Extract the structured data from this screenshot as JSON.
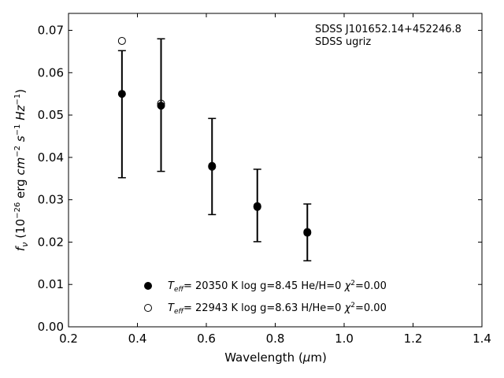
{
  "chart_data": {
    "type": "scatter",
    "xlabel": "Wavelength (μm)",
    "ylabel": "f_ν (10^-26 erg cm^-2 s^-1 Hz^-1)",
    "xlim": [
      0.2,
      1.4
    ],
    "ylim": [
      0.0,
      0.074
    ],
    "x_ticks": [
      0.2,
      0.4,
      0.6,
      0.8,
      1.0,
      1.2,
      1.4
    ],
    "x_tick_labels": [
      "0.2",
      "0.4",
      "0.6",
      "0.8",
      "1.0",
      "1.2",
      "1.4"
    ],
    "y_ticks": [
      0.0,
      0.01,
      0.02,
      0.03,
      0.04,
      0.05,
      0.06,
      0.07
    ],
    "y_tick_labels": [
      "0.00",
      "0.01",
      "0.02",
      "0.03",
      "0.04",
      "0.05",
      "0.06",
      "0.07"
    ],
    "grid": false,
    "annotations": [
      "SDSS J101652.14+452246.8",
      "SDSS ugriz"
    ],
    "observed": {
      "x": [
        0.3551,
        0.4686,
        0.6166,
        0.748,
        0.8932
      ],
      "y": [
        0.055,
        0.0525,
        0.0382,
        0.0285,
        0.0225
      ],
      "err_low": [
        0.0352,
        0.0367,
        0.0265,
        0.0201,
        0.0156
      ],
      "err_high": [
        0.0652,
        0.068,
        0.0492,
        0.0372,
        0.029
      ]
    },
    "series": [
      {
        "marker": "filled-circle",
        "legend": {
          "teff_sym": "T",
          "teff_sub": "eff",
          "text": "= 20350 K  log g=8.45  He/H=0  ",
          "chi_sym": "χ",
          "chi_sup": "2",
          "chi_val": "=0.00"
        },
        "x": [
          0.3551,
          0.4686,
          0.6166,
          0.748,
          0.8932
        ],
        "y": [
          0.055,
          0.0522,
          0.038,
          0.0283,
          0.0222
        ]
      },
      {
        "marker": "open-circle",
        "legend": {
          "teff_sym": "T",
          "teff_sub": "eff",
          "text": "= 22943 K  log g=8.63  H/He=0  ",
          "chi_sym": "χ",
          "chi_sup": "2",
          "chi_val": "=0.00"
        },
        "x": [
          0.3551,
          0.4686,
          0.6166,
          0.748,
          0.8932
        ],
        "y": [
          0.0675,
          0.0527,
          0.0378,
          0.0285,
          0.0224
        ]
      }
    ]
  }
}
